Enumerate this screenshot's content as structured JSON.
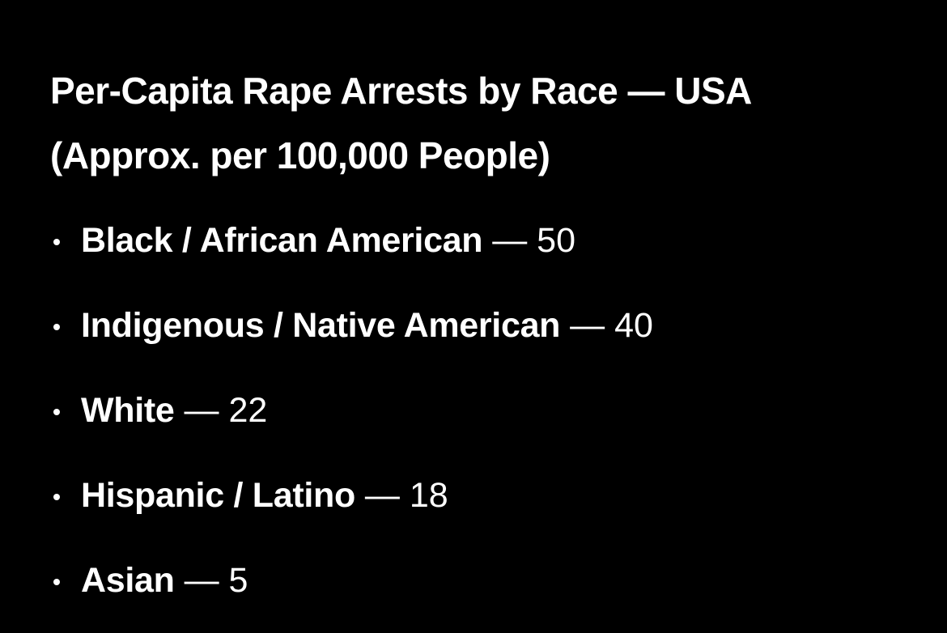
{
  "title": "Per-Capita Rape Arrests by Race — USA (Approx. per 100,000 People)",
  "items": [
    {
      "label": "Black / African American",
      "dash": "—",
      "value": 50
    },
    {
      "label": "Indigenous / Native American",
      "dash": "—",
      "value": 40
    },
    {
      "label": "White",
      "dash": "—",
      "value": 22
    },
    {
      "label": "Hispanic / Latino",
      "dash": "—",
      "value": 18
    },
    {
      "label": "Asian",
      "dash": "—",
      "value": 5
    }
  ]
}
